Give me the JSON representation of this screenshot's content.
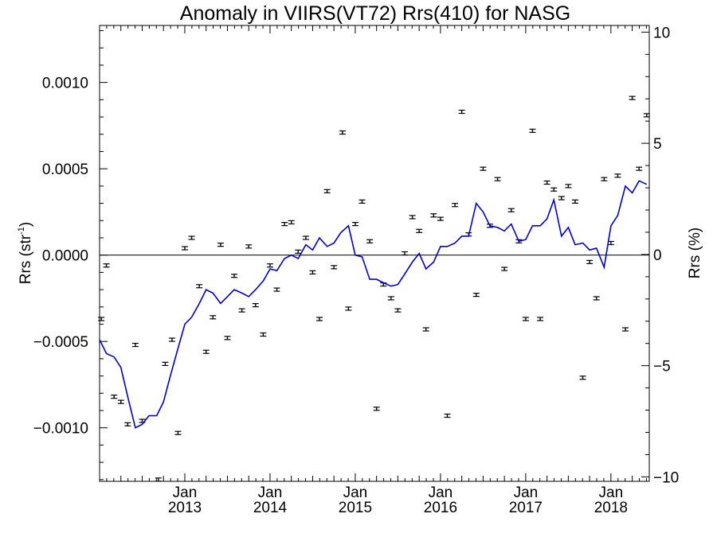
{
  "chart_data": {
    "type": "scatter",
    "title": "Anomaly in VIIRS(VT72) Rrs(410) for NASG",
    "ylabel_left": "Rrs (str",
    "ylabel_left_sup": "-1",
    "ylabel_left_close": ")",
    "ylabel_right": "Rrs (%)",
    "xlim": [
      2012.0,
      2018.45
    ],
    "ylim": [
      -0.00131,
      0.00133
    ],
    "ylim_right": [
      -10.2,
      10.3
    ],
    "left_ticks": [
      {
        "value": 0.001,
        "label": "0.0010"
      },
      {
        "value": 0.0005,
        "label": "0.0005"
      },
      {
        "value": 0.0,
        "label": "0.0000"
      },
      {
        "value": -0.0005,
        "label": "−0.0005"
      },
      {
        "value": -0.001,
        "label": "−0.0010"
      }
    ],
    "right_ticks": [
      {
        "value": 10,
        "label": "10"
      },
      {
        "value": 5,
        "label": "5"
      },
      {
        "value": 0,
        "label": "0"
      },
      {
        "value": -5,
        "label": "−5"
      },
      {
        "value": -10,
        "label": "−10"
      }
    ],
    "x_ticks": [
      {
        "value": 2013.0,
        "month": "Jan",
        "year": "2013"
      },
      {
        "value": 2014.0,
        "month": "Jan",
        "year": "2014"
      },
      {
        "value": 2015.0,
        "month": "Jan",
        "year": "2015"
      },
      {
        "value": 2016.0,
        "month": "Jan",
        "year": "2016"
      },
      {
        "value": 2017.0,
        "month": "Jan",
        "year": "2017"
      },
      {
        "value": 2018.0,
        "month": "Jan",
        "year": "2018"
      }
    ],
    "zero_line": true,
    "series": [
      {
        "kind": "points_with_errorbars",
        "color": "#000000",
        "points": [
          [
            2012.02,
            -0.00037
          ],
          [
            2012.08,
            -6e-05
          ],
          [
            2012.17,
            -0.00082
          ],
          [
            2012.25,
            -0.00085
          ],
          [
            2012.33,
            -0.00098
          ],
          [
            2012.42,
            -0.00052
          ],
          [
            2012.5,
            -0.00096
          ],
          [
            2012.69,
            -0.0013
          ],
          [
            2012.77,
            -0.00063
          ],
          [
            2012.85,
            -0.00049
          ],
          [
            2012.92,
            -0.00103
          ],
          [
            2013.0,
            4e-05
          ],
          [
            2013.08,
            0.0001
          ],
          [
            2013.17,
            -0.00018
          ],
          [
            2013.25,
            -0.00056
          ],
          [
            2013.33,
            -0.00036
          ],
          [
            2013.42,
            6e-05
          ],
          [
            2013.5,
            -0.00048
          ],
          [
            2013.58,
            -0.00012
          ],
          [
            2013.67,
            -0.00032
          ],
          [
            2013.75,
            5e-05
          ],
          [
            2013.83,
            -0.00029
          ],
          [
            2013.92,
            -0.00046
          ],
          [
            2014.0,
            -6e-05
          ],
          [
            2014.08,
            -0.0002
          ],
          [
            2014.17,
            0.00018
          ],
          [
            2014.25,
            0.00019
          ],
          [
            2014.33,
            2e-05
          ],
          [
            2014.42,
            0.0001
          ],
          [
            2014.5,
            -0.0001
          ],
          [
            2014.58,
            -0.00037
          ],
          [
            2014.67,
            0.00037
          ],
          [
            2014.75,
            -7e-05
          ],
          [
            2014.85,
            0.00071
          ],
          [
            2014.92,
            -0.00031
          ],
          [
            2015.0,
            0.00018
          ],
          [
            2015.08,
            0.00031
          ],
          [
            2015.17,
            8e-05
          ],
          [
            2015.25,
            -0.00089
          ],
          [
            2015.33,
            -0.00017
          ],
          [
            2015.42,
            -0.00025
          ],
          [
            2015.5,
            -0.00032
          ],
          [
            2015.58,
            1e-05
          ],
          [
            2015.67,
            0.00022
          ],
          [
            2015.75,
            0.00014
          ],
          [
            2015.83,
            -0.00043
          ],
          [
            2015.92,
            0.00023
          ],
          [
            2016.0,
            0.00021
          ],
          [
            2016.08,
            -0.00093
          ],
          [
            2016.17,
            0.00029
          ],
          [
            2016.25,
            0.00083
          ],
          [
            2016.33,
            0.00012
          ],
          [
            2016.42,
            -0.00023
          ],
          [
            2016.5,
            0.0005
          ],
          [
            2016.58,
            0.00017
          ],
          [
            2016.67,
            0.00044
          ],
          [
            2016.75,
            -8e-05
          ],
          [
            2016.83,
            0.00026
          ],
          [
            2016.92,
            8e-05
          ],
          [
            2017.0,
            -0.00037
          ],
          [
            2017.08,
            0.00072
          ],
          [
            2017.17,
            -0.00037
          ],
          [
            2017.25,
            0.00042
          ],
          [
            2017.33,
            0.00038
          ],
          [
            2017.42,
            0.00033
          ],
          [
            2017.5,
            0.0004
          ],
          [
            2017.58,
            0.00031
          ],
          [
            2017.67,
            -0.00071
          ],
          [
            2017.75,
            -4e-05
          ],
          [
            2017.83,
            -0.00025
          ],
          [
            2017.92,
            0.00044
          ],
          [
            2018.0,
            7e-05
          ],
          [
            2018.08,
            0.00046
          ],
          [
            2018.17,
            -0.00043
          ],
          [
            2018.25,
            0.00091
          ],
          [
            2018.33,
            0.0005
          ],
          [
            2018.42,
            0.00081
          ]
        ]
      },
      {
        "kind": "line",
        "color": "#0000dd",
        "points": [
          [
            2012.0,
            -0.00049
          ],
          [
            2012.08,
            -0.00057
          ],
          [
            2012.17,
            -0.00059
          ],
          [
            2012.25,
            -0.00065
          ],
          [
            2012.33,
            -0.00082
          ],
          [
            2012.42,
            -0.001
          ],
          [
            2012.5,
            -0.00098
          ],
          [
            2012.58,
            -0.00093
          ],
          [
            2012.67,
            -0.00093
          ],
          [
            2012.75,
            -0.00085
          ],
          [
            2012.83,
            -0.0007
          ],
          [
            2012.92,
            -0.00054
          ],
          [
            2013.0,
            -0.0004
          ],
          [
            2013.08,
            -0.00036
          ],
          [
            2013.17,
            -0.00028
          ],
          [
            2013.25,
            -0.0002
          ],
          [
            2013.33,
            -0.00022
          ],
          [
            2013.42,
            -0.00028
          ],
          [
            2013.5,
            -0.00024
          ],
          [
            2013.58,
            -0.0002
          ],
          [
            2013.67,
            -0.00022
          ],
          [
            2013.75,
            -0.00024
          ],
          [
            2013.83,
            -0.0002
          ],
          [
            2013.92,
            -0.00015
          ],
          [
            2014.0,
            -8e-05
          ],
          [
            2014.08,
            -9e-05
          ],
          [
            2014.17,
            -2e-05
          ],
          [
            2014.25,
            0.0
          ],
          [
            2014.33,
            -2e-05
          ],
          [
            2014.42,
            6e-05
          ],
          [
            2014.5,
            3e-05
          ],
          [
            2014.58,
            0.0001
          ],
          [
            2014.67,
            5e-05
          ],
          [
            2014.75,
            7e-05
          ],
          [
            2014.83,
            0.00013
          ],
          [
            2014.92,
            0.00017
          ],
          [
            2015.0,
            0.0
          ],
          [
            2015.08,
            -1e-05
          ],
          [
            2015.17,
            -0.00014
          ],
          [
            2015.25,
            -0.00014
          ],
          [
            2015.33,
            -0.00016
          ],
          [
            2015.42,
            -0.00018
          ],
          [
            2015.5,
            -0.00017
          ],
          [
            2015.58,
            -0.00011
          ],
          [
            2015.67,
            -4e-05
          ],
          [
            2015.75,
            1e-05
          ],
          [
            2015.83,
            -8e-05
          ],
          [
            2015.92,
            -4e-05
          ],
          [
            2016.0,
            5e-05
          ],
          [
            2016.08,
            5e-05
          ],
          [
            2016.17,
            7e-05
          ],
          [
            2016.25,
            0.00011
          ],
          [
            2016.33,
            0.00011
          ],
          [
            2016.42,
            0.0003
          ],
          [
            2016.5,
            0.00025
          ],
          [
            2016.58,
            0.00017
          ],
          [
            2016.67,
            0.00016
          ],
          [
            2016.75,
            0.00014
          ],
          [
            2016.83,
            0.00018
          ],
          [
            2016.92,
            8e-05
          ],
          [
            2017.0,
            9e-05
          ],
          [
            2017.08,
            0.00017
          ],
          [
            2017.17,
            0.00017
          ],
          [
            2017.25,
            0.00021
          ],
          [
            2017.33,
            0.00032
          ],
          [
            2017.42,
            0.00011
          ],
          [
            2017.5,
            0.00016
          ],
          [
            2017.58,
            6e-05
          ],
          [
            2017.67,
            7e-05
          ],
          [
            2017.75,
            3e-05
          ],
          [
            2017.83,
            4e-05
          ],
          [
            2017.92,
            -7e-05
          ],
          [
            2018.0,
            0.00017
          ],
          [
            2018.08,
            0.00023
          ],
          [
            2018.17,
            0.0004
          ],
          [
            2018.25,
            0.00036
          ],
          [
            2018.33,
            0.00043
          ],
          [
            2018.42,
            0.00041
          ]
        ]
      }
    ]
  }
}
